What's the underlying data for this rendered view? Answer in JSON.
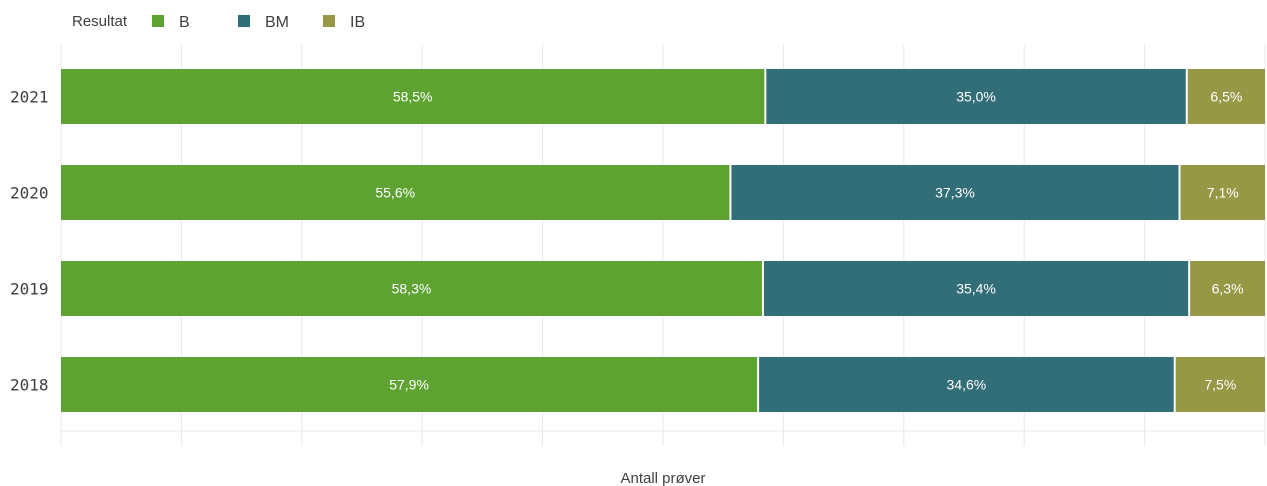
{
  "legend": {
    "title": "Resultat",
    "items": [
      {
        "name": "B",
        "color": "#5ea332"
      },
      {
        "name": "BM",
        "color": "#326e78"
      },
      {
        "name": "IB",
        "color": "#979846"
      }
    ]
  },
  "chart_data": {
    "type": "bar",
    "orientation": "horizontal",
    "stacked": true,
    "xlabel": "Antall prøver",
    "ylabel": "",
    "categories": [
      "2021",
      "2020",
      "2019",
      "2018"
    ],
    "series": [
      {
        "name": "B",
        "color": "#5ea332",
        "values": [
          58.5,
          55.6,
          58.3,
          57.9
        ],
        "labels": [
          "58,5%",
          "55,6%",
          "58,3%",
          "57,9%"
        ]
      },
      {
        "name": "BM",
        "color": "#326e78",
        "values": [
          35.0,
          37.3,
          35.4,
          34.6
        ],
        "labels": [
          "35,0%",
          "37,3%",
          "35,4%",
          "34,6%"
        ]
      },
      {
        "name": "IB",
        "color": "#979846",
        "values": [
          6.5,
          7.1,
          6.3,
          7.5
        ],
        "labels": [
          "6,5%",
          "7,1%",
          "6,3%",
          "7,5%"
        ]
      }
    ],
    "xlim": [
      0,
      100
    ],
    "grid": true,
    "legend_position": "top-left"
  }
}
